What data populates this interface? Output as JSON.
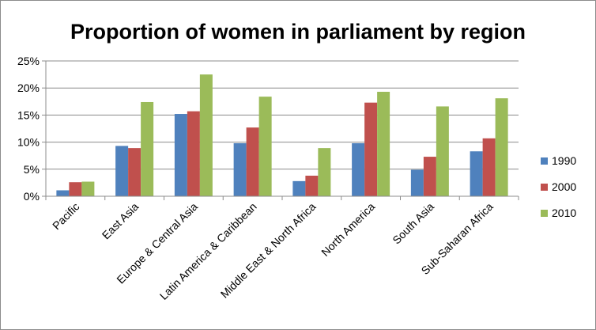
{
  "chart_data": {
    "type": "bar",
    "title": "Proportion of women in parliament by region",
    "xlabel": "",
    "ylabel": "",
    "ylim": [
      0,
      0.25
    ],
    "yticks": [
      "0%",
      "5%",
      "10%",
      "15%",
      "20%",
      "25%"
    ],
    "grid": true,
    "legend_position": "right",
    "categories": [
      "Pacific",
      "East Asia",
      "Europe & Central Asia",
      "Latin America & Caribbean",
      "Middle East & North Africa",
      "North America",
      "South Asia",
      "Sub-Saharan Africa"
    ],
    "series": [
      {
        "name": "1990",
        "color": "#4f81bd",
        "values": [
          0.011,
          0.093,
          0.152,
          0.098,
          0.028,
          0.098,
          0.049,
          0.083
        ]
      },
      {
        "name": "2000",
        "color": "#c0504d",
        "values": [
          0.026,
          0.089,
          0.157,
          0.127,
          0.038,
          0.173,
          0.073,
          0.107
        ]
      },
      {
        "name": "2010",
        "color": "#9bbb59",
        "values": [
          0.027,
          0.174,
          0.225,
          0.184,
          0.089,
          0.193,
          0.166,
          0.181
        ]
      }
    ]
  }
}
